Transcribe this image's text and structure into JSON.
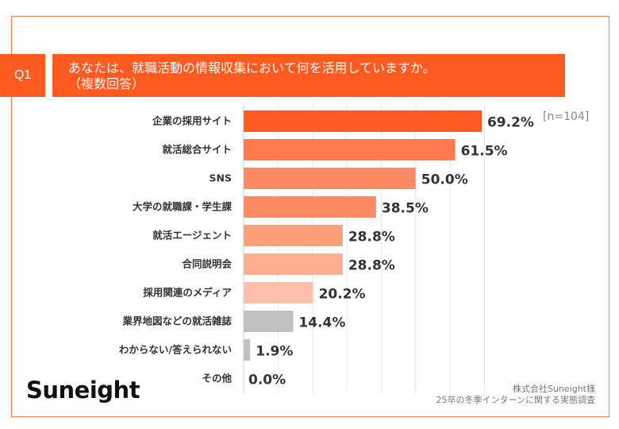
{
  "header": {
    "question_no": "Q1",
    "question_line1": "あなたは、就職活動の情報収集において何を活用していますか。",
    "question_line2": "（複数回答）"
  },
  "sample_size": "[n=104]",
  "logo": "Suneight",
  "source": {
    "line1": "株式会社Suneight様",
    "line2": "25卒の冬季インターンに関する実態調査"
  },
  "chart_data": {
    "type": "bar",
    "orientation": "horizontal",
    "categories": [
      "企業の採用サイト",
      "就活総合サイト",
      "SNS",
      "大学の就職課・学生課",
      "就活エージェント",
      "合同説明会",
      "採用関連のメディア",
      "業界地図などの就活雑誌",
      "わからない/答えられない",
      "その他"
    ],
    "values": [
      69.2,
      61.5,
      50.0,
      38.5,
      28.8,
      28.8,
      20.2,
      14.4,
      1.9,
      0.0
    ],
    "labels": [
      "69.2%",
      "61.5%",
      "50.0%",
      "38.5%",
      "28.8%",
      "28.8%",
      "20.2%",
      "14.4%",
      "1.9%",
      "0.0%"
    ],
    "colors": [
      "#FF5A1F",
      "#FF7B4F",
      "#FF8A63",
      "#FF8A63",
      "#FF9E7C",
      "#FFAD90",
      "#FFBFA8",
      "#C0C0C0",
      "#C0C0C0",
      "#C0C0C0"
    ],
    "unit": "%",
    "xlim": [
      0,
      80
    ],
    "grid": true
  }
}
